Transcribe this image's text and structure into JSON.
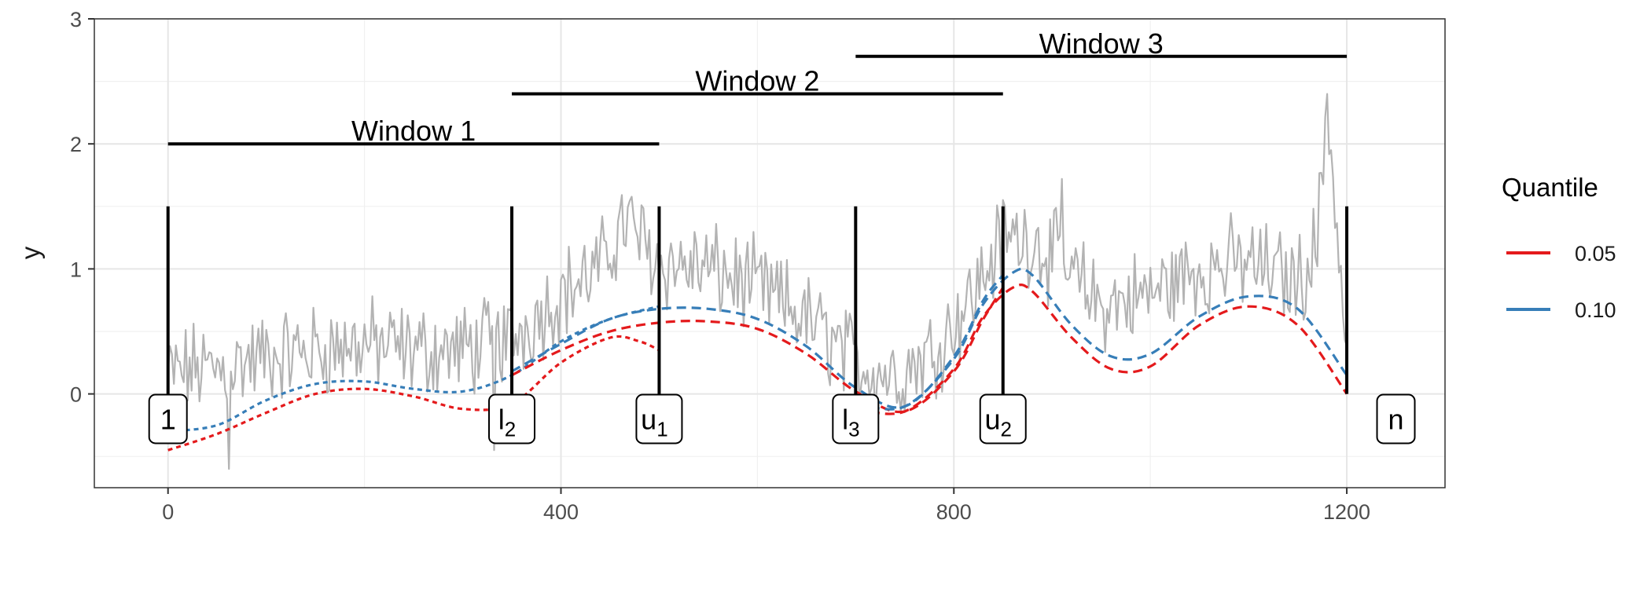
{
  "chart_data": {
    "type": "line",
    "title": "",
    "xlabel": "",
    "ylabel": "y",
    "xlim": [
      -75,
      1300
    ],
    "ylim": [
      -0.75,
      3.0
    ],
    "x_ticks": [
      0,
      400,
      800,
      1200
    ],
    "x_tick_labels": [
      "0",
      "400",
      "800",
      "1200"
    ],
    "y_ticks": [
      0,
      1,
      2,
      3
    ],
    "y_tick_labels": [
      "0",
      "1",
      "2",
      "3"
    ],
    "grid": true,
    "legend": {
      "title": "Quantile",
      "position": "right",
      "entries": [
        {
          "label": "0.05",
          "color": "#e41a1c"
        },
        {
          "label": "0.10",
          "color": "#377eb8"
        }
      ]
    },
    "raw_series": {
      "color": "#b3b3b3",
      "anchors": [
        [
          0,
          0.15
        ],
        [
          25,
          0.2
        ],
        [
          50,
          0.2
        ],
        [
          75,
          0.25
        ],
        [
          100,
          0.3
        ],
        [
          150,
          0.35
        ],
        [
          200,
          0.4
        ],
        [
          250,
          0.35
        ],
        [
          300,
          0.35
        ],
        [
          350,
          0.45
        ],
        [
          400,
          0.8
        ],
        [
          440,
          1.0
        ],
        [
          465,
          1.4
        ],
        [
          500,
          1.05
        ],
        [
          550,
          1.0
        ],
        [
          600,
          0.85
        ],
        [
          650,
          0.6
        ],
        [
          700,
          0.25
        ],
        [
          740,
          0.15
        ],
        [
          780,
          0.35
        ],
        [
          820,
          0.8
        ],
        [
          850,
          1.25
        ],
        [
          880,
          1.25
        ],
        [
          900,
          1.1
        ],
        [
          950,
          0.7
        ],
        [
          1000,
          0.8
        ],
        [
          1050,
          1.0
        ],
        [
          1100,
          1.05
        ],
        [
          1150,
          0.9
        ],
        [
          1170,
          1.2
        ],
        [
          1180,
          2.4
        ],
        [
          1190,
          1.3
        ],
        [
          1200,
          0.3
        ]
      ],
      "spikes": [
        [
          62,
          -0.6
        ],
        [
          195,
          1.1
        ],
        [
          332,
          -0.45
        ],
        [
          463,
          1.85
        ],
        [
          855,
          1.78
        ],
        [
          910,
          1.72
        ],
        [
          1177,
          2.47
        ]
      ]
    },
    "window_lines": [
      {
        "label": "Window 1",
        "x_start": 0,
        "x_end": 500,
        "y": 2.0
      },
      {
        "label": "Window 2",
        "x_start": 350,
        "x_end": 850,
        "y": 2.4
      },
      {
        "label": "Window 3",
        "x_start": 700,
        "x_end": 1200,
        "y": 2.7
      }
    ],
    "boundaries": [
      {
        "x": 0,
        "label": "1",
        "sub": ""
      },
      {
        "x": 350,
        "label": "l",
        "sub": "2"
      },
      {
        "x": 500,
        "label": "u",
        "sub": "1"
      },
      {
        "x": 700,
        "label": "l",
        "sub": "3"
      },
      {
        "x": 850,
        "label": "u",
        "sub": "2"
      },
      {
        "x": 1200,
        "label": "",
        "sub": ""
      }
    ],
    "bottom_labels": [
      {
        "x": 0,
        "text": "1",
        "sub": ""
      },
      {
        "x": 350,
        "text": "l",
        "sub": "2"
      },
      {
        "x": 500,
        "text": "u",
        "sub": "1"
      },
      {
        "x": 700,
        "text": "l",
        "sub": "3"
      },
      {
        "x": 850,
        "text": "u",
        "sub": "2"
      },
      {
        "x": 1250,
        "text": "n",
        "sub": ""
      }
    ],
    "quantile_curves": [
      {
        "name": "0.05",
        "window": 1,
        "color": "#e41a1c",
        "dash": "6,5",
        "points": [
          [
            0,
            -0.45
          ],
          [
            50,
            -0.32
          ],
          [
            100,
            -0.15
          ],
          [
            150,
            0.0
          ],
          [
            200,
            0.04
          ],
          [
            250,
            -0.02
          ],
          [
            300,
            -0.12
          ],
          [
            350,
            -0.08
          ],
          [
            400,
            0.25
          ],
          [
            450,
            0.45
          ],
          [
            480,
            0.42
          ],
          [
            500,
            0.35
          ]
        ]
      },
      {
        "name": "0.10",
        "window": 1,
        "color": "#377eb8",
        "dash": "6,5",
        "points": [
          [
            0,
            -0.3
          ],
          [
            50,
            -0.25
          ],
          [
            100,
            -0.05
          ],
          [
            150,
            0.08
          ],
          [
            200,
            0.1
          ],
          [
            250,
            0.04
          ],
          [
            300,
            0.02
          ],
          [
            350,
            0.15
          ],
          [
            400,
            0.42
          ],
          [
            450,
            0.6
          ],
          [
            500,
            0.7
          ]
        ]
      },
      {
        "name": "0.05",
        "window": 2,
        "color": "#e41a1c",
        "dash": "12,7",
        "points": [
          [
            350,
            0.15
          ],
          [
            400,
            0.35
          ],
          [
            450,
            0.5
          ],
          [
            500,
            0.57
          ],
          [
            550,
            0.58
          ],
          [
            600,
            0.52
          ],
          [
            650,
            0.32
          ],
          [
            700,
            0.02
          ],
          [
            750,
            -0.14
          ],
          [
            800,
            0.18
          ],
          [
            830,
            0.6
          ],
          [
            850,
            0.85
          ]
        ]
      },
      {
        "name": "0.10",
        "window": 2,
        "color": "#377eb8",
        "dash": "12,7",
        "points": [
          [
            350,
            0.18
          ],
          [
            400,
            0.4
          ],
          [
            450,
            0.6
          ],
          [
            500,
            0.68
          ],
          [
            550,
            0.68
          ],
          [
            600,
            0.6
          ],
          [
            650,
            0.38
          ],
          [
            700,
            0.05
          ],
          [
            750,
            -0.1
          ],
          [
            800,
            0.3
          ],
          [
            830,
            0.75
          ],
          [
            850,
            0.95
          ]
        ]
      },
      {
        "name": "0.05",
        "window": 3,
        "color": "#e41a1c",
        "dash": "12,7",
        "points": [
          [
            700,
            -0.12
          ],
          [
            750,
            -0.14
          ],
          [
            800,
            0.2
          ],
          [
            830,
            0.62
          ],
          [
            860,
            0.85
          ],
          [
            880,
            0.82
          ],
          [
            920,
            0.45
          ],
          [
            960,
            0.2
          ],
          [
            1000,
            0.22
          ],
          [
            1050,
            0.55
          ],
          [
            1100,
            0.7
          ],
          [
            1150,
            0.55
          ],
          [
            1200,
            0.0
          ]
        ]
      },
      {
        "name": "0.10",
        "window": 3,
        "color": "#377eb8",
        "dash": "12,7",
        "points": [
          [
            700,
            -0.08
          ],
          [
            750,
            -0.1
          ],
          [
            800,
            0.28
          ],
          [
            830,
            0.72
          ],
          [
            860,
            0.97
          ],
          [
            880,
            0.95
          ],
          [
            920,
            0.55
          ],
          [
            960,
            0.3
          ],
          [
            1000,
            0.32
          ],
          [
            1050,
            0.62
          ],
          [
            1100,
            0.78
          ],
          [
            1150,
            0.68
          ],
          [
            1200,
            0.15
          ]
        ]
      }
    ]
  }
}
